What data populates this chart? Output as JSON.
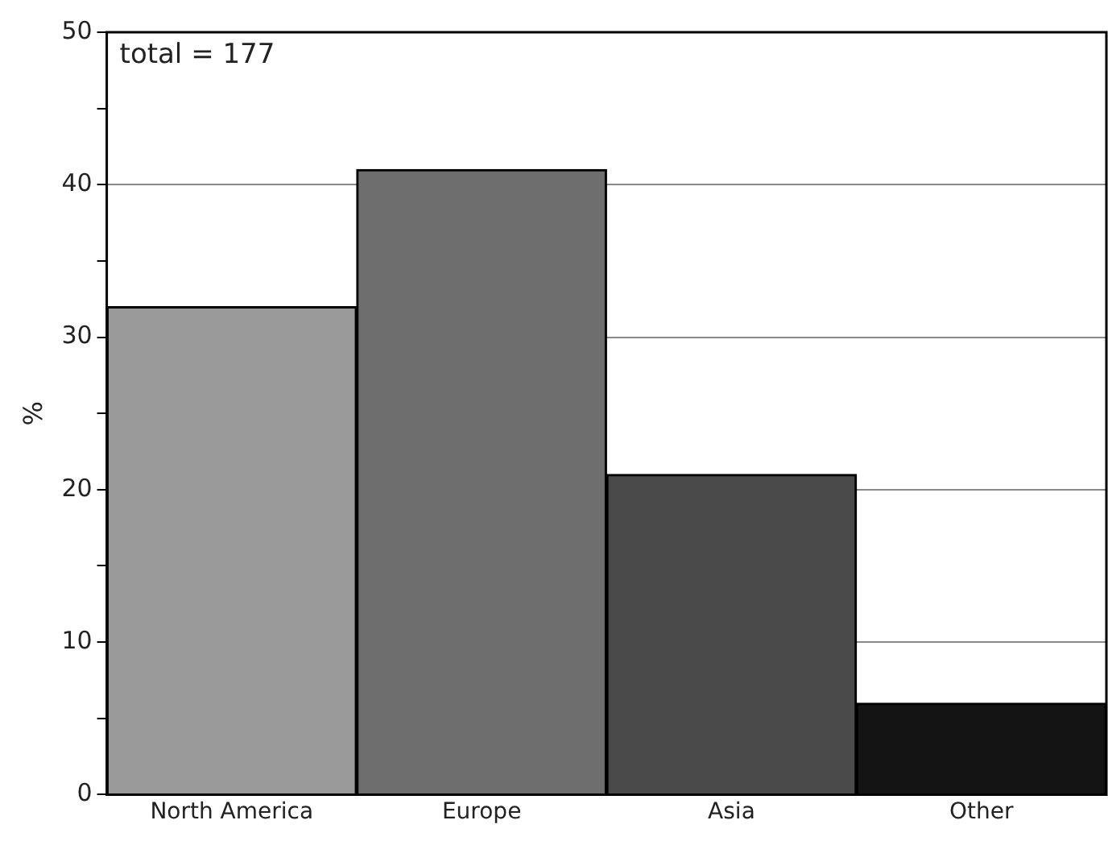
{
  "chart_data": {
    "type": "bar",
    "ylabel": "%",
    "categories": [
      "North America",
      "Europe",
      "Asia",
      "Other"
    ],
    "values": [
      32,
      41,
      21,
      6
    ],
    "colors": [
      "#9a9a9a",
      "#6e6e6e",
      "#4a4a4a",
      "#141414"
    ],
    "ylim": [
      0,
      50
    ],
    "yticks": [
      0,
      {
        "value": 5,
        "label": null
      },
      10,
      {
        "value": 15,
        "label": null
      },
      20,
      {
        "value": 25,
        "label": null
      },
      30,
      {
        "value": 35,
        "label": null
      },
      40,
      {
        "value": 45,
        "label": null
      },
      50
    ],
    "grid": "y",
    "annotations": [
      "total = 177"
    ]
  }
}
